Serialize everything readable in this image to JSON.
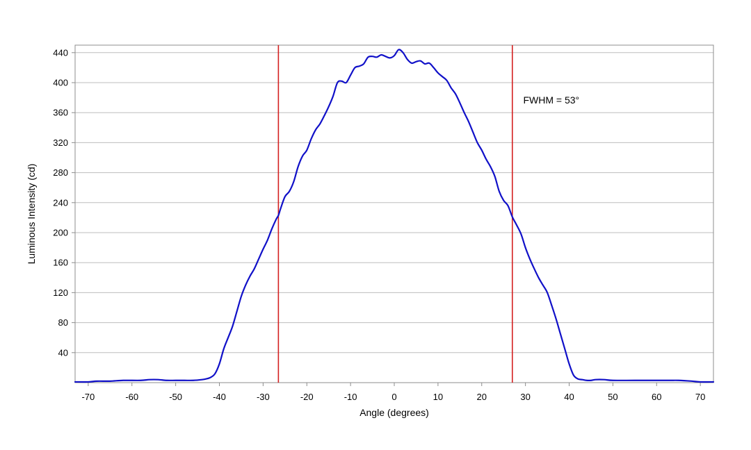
{
  "chart_data": {
    "type": "line",
    "xlabel": "Angle (degrees)",
    "ylabel": "Luminous Intensity (cd)",
    "xlim": [
      -73,
      73
    ],
    "ylim": [
      0,
      450
    ],
    "x_ticks": [
      -70,
      -60,
      -50,
      -40,
      -30,
      -20,
      -10,
      0,
      10,
      20,
      30,
      40,
      50,
      60,
      70
    ],
    "x_tick_labels": [
      "-70",
      "-60",
      "-50",
      "-40",
      "-30",
      "-20",
      "-10",
      "0",
      "10",
      "20",
      "30",
      "40",
      "50",
      "60",
      "70"
    ],
    "y_ticks": [
      40,
      80,
      120,
      160,
      200,
      240,
      280,
      320,
      360,
      400,
      440
    ],
    "y_tick_labels": [
      "40",
      "80",
      "120",
      "160",
      "200",
      "240",
      "280",
      "320",
      "360",
      "400",
      "440"
    ],
    "grid": {
      "horizontal": true,
      "vertical": false
    },
    "line_color": "#1010c8",
    "marker_color": "#d42020",
    "markers_x": [
      -26.5,
      27
    ],
    "annotation": {
      "text": "FWHM = 53°",
      "x": 29.5,
      "y": 377
    },
    "series": [
      {
        "x": [
          -73,
          -70,
          -68,
          -65,
          -62,
          -58,
          -56,
          -54,
          -52,
          -50,
          -48,
          -46,
          -44,
          -43,
          -42,
          -41,
          -40,
          -39,
          -38,
          -37,
          -36,
          -35,
          -34,
          -33,
          -32,
          -31,
          -30,
          -29,
          -28,
          -27,
          -26.5,
          -26,
          -25,
          -24,
          -23,
          -22,
          -21,
          -20,
          -19,
          -18,
          -17,
          -16,
          -15,
          -14,
          -13,
          -12,
          -11,
          -10,
          -9,
          -8,
          -7,
          -6,
          -5,
          -4,
          -3,
          -2,
          -1,
          0,
          1,
          2,
          3,
          4,
          5,
          6,
          7,
          8,
          9,
          10,
          11,
          12,
          13,
          14,
          15,
          16,
          17,
          18,
          19,
          20,
          21,
          22,
          23,
          24,
          25,
          26,
          27,
          28,
          29,
          30,
          31,
          32,
          33,
          34,
          35,
          36,
          37,
          38,
          39,
          40,
          41,
          42,
          43,
          44,
          45,
          46,
          48,
          50,
          55,
          60,
          63,
          65,
          68,
          70,
          73
        ],
        "y": [
          1,
          1,
          2,
          2,
          3,
          3,
          4,
          4,
          3,
          3,
          3,
          3,
          4,
          5,
          7,
          12,
          25,
          45,
          60,
          75,
          95,
          115,
          130,
          142,
          152,
          165,
          178,
          190,
          205,
          218,
          223,
          232,
          248,
          255,
          268,
          288,
          302,
          310,
          325,
          337,
          345,
          356,
          368,
          382,
          400,
          402,
          400,
          410,
          420,
          422,
          425,
          434,
          435,
          434,
          437,
          435,
          433,
          436,
          444,
          440,
          431,
          426,
          428,
          429,
          425,
          426,
          420,
          413,
          408,
          403,
          393,
          385,
          373,
          360,
          348,
          334,
          320,
          310,
          298,
          288,
          275,
          255,
          243,
          236,
          221,
          210,
          198,
          180,
          165,
          152,
          140,
          130,
          120,
          103,
          85,
          65,
          45,
          25,
          10,
          5,
          4,
          3,
          3,
          4,
          4,
          3,
          3,
          3,
          3,
          3,
          2,
          1,
          1
        ]
      }
    ]
  }
}
